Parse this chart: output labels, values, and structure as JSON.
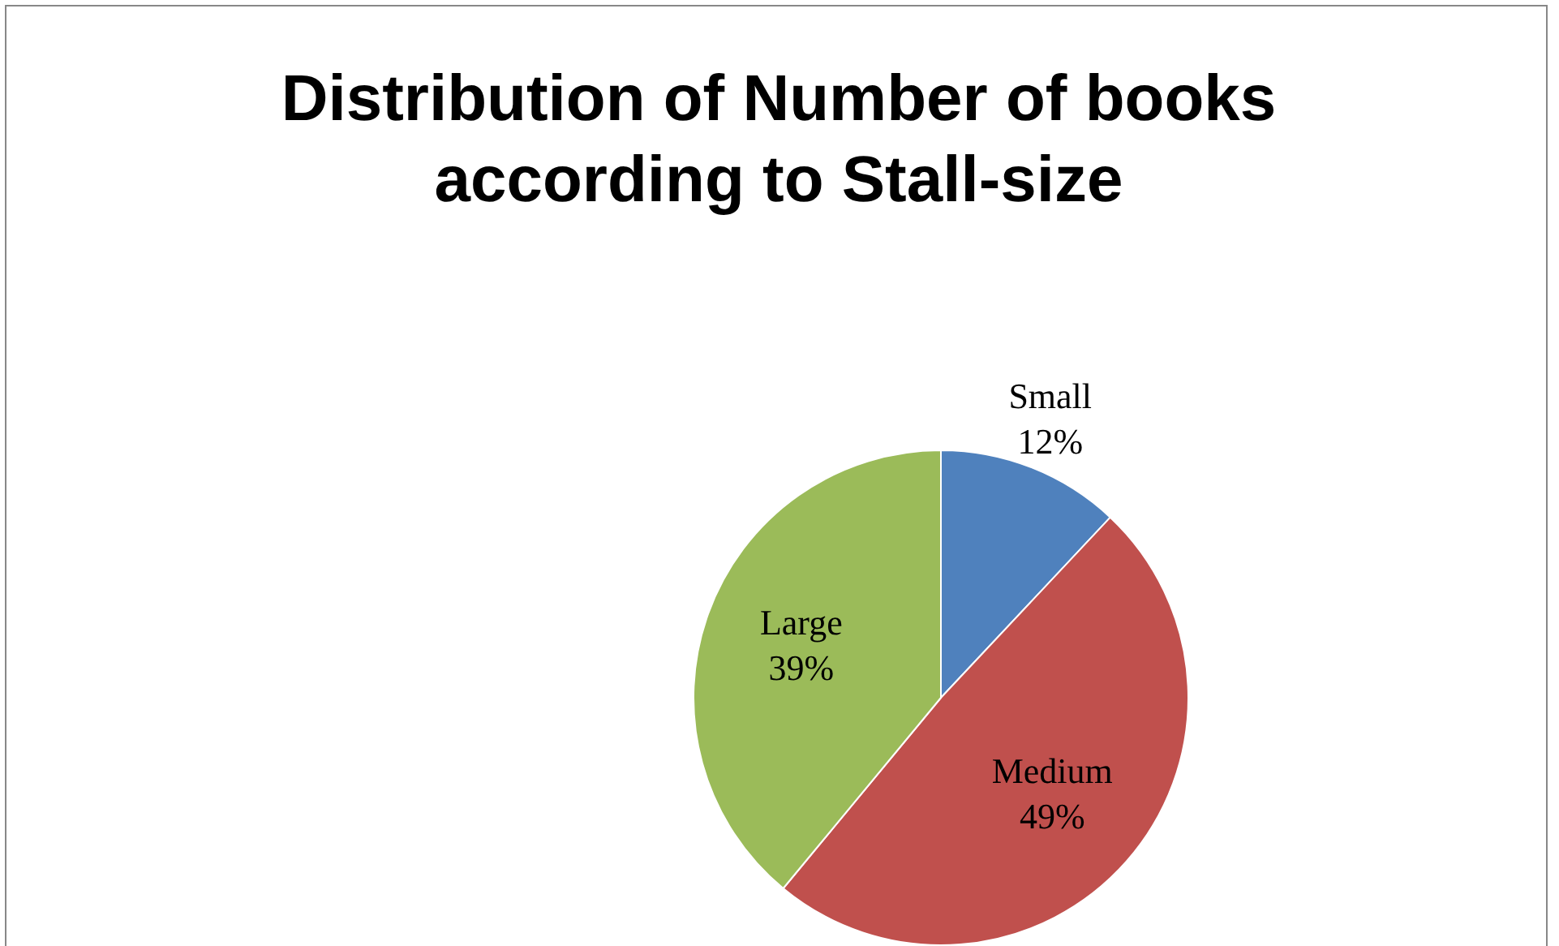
{
  "chart_data": {
    "type": "pie",
    "title": "Distribution of Number of books according to Stall-size",
    "categories": [
      "Small",
      "Medium",
      "Large"
    ],
    "values": [
      12,
      49,
      39
    ],
    "colors": [
      "#4f81bd",
      "#c0504d",
      "#9bbb59"
    ],
    "value_labels": [
      "12%",
      "49%",
      "39%"
    ],
    "legend": false
  }
}
